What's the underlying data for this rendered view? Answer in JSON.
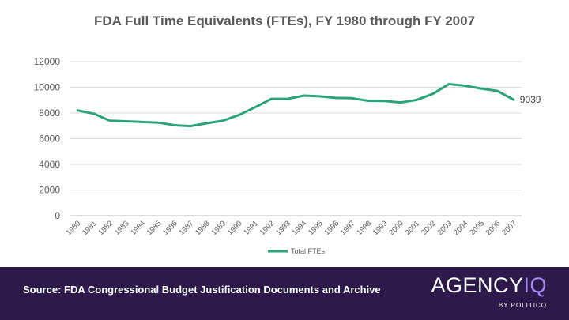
{
  "chart_data": {
    "type": "line",
    "title": "FDA Full Time Equivalents (FTEs), FY 1980 through FY 2007",
    "x": [
      "1980",
      "1981",
      "1982",
      "1983",
      "1984",
      "1985",
      "1986",
      "1987",
      "1988",
      "1989",
      "1990",
      "1991",
      "1992",
      "1993",
      "1994",
      "1995",
      "1996",
      "1997",
      "1998",
      "1999",
      "2000",
      "2001",
      "2002",
      "2003",
      "2004",
      "2005",
      "2006",
      "2007"
    ],
    "series": [
      {
        "name": "Total FTEs",
        "color": "#2aa37a",
        "values": [
          8200,
          7950,
          7400,
          7350,
          7300,
          7250,
          7050,
          6980,
          7200,
          7400,
          7850,
          8450,
          9100,
          9100,
          9350,
          9300,
          9180,
          9150,
          8950,
          8940,
          8820,
          9020,
          9490,
          10250,
          10120,
          9900,
          9720,
          9039
        ]
      }
    ],
    "end_label": "9039",
    "ylim": [
      0,
      12000
    ],
    "yticks": [
      "0",
      "2000",
      "4000",
      "6000",
      "8000",
      "10000",
      "12000"
    ],
    "grid": true,
    "legend": "bottom"
  },
  "footer": {
    "source": "Source: FDA Congressional Budget Justification Documents and Archive",
    "brand_main": "AGENCY",
    "brand_accent": "IQ",
    "brand_sub": "BY POLITICO"
  }
}
